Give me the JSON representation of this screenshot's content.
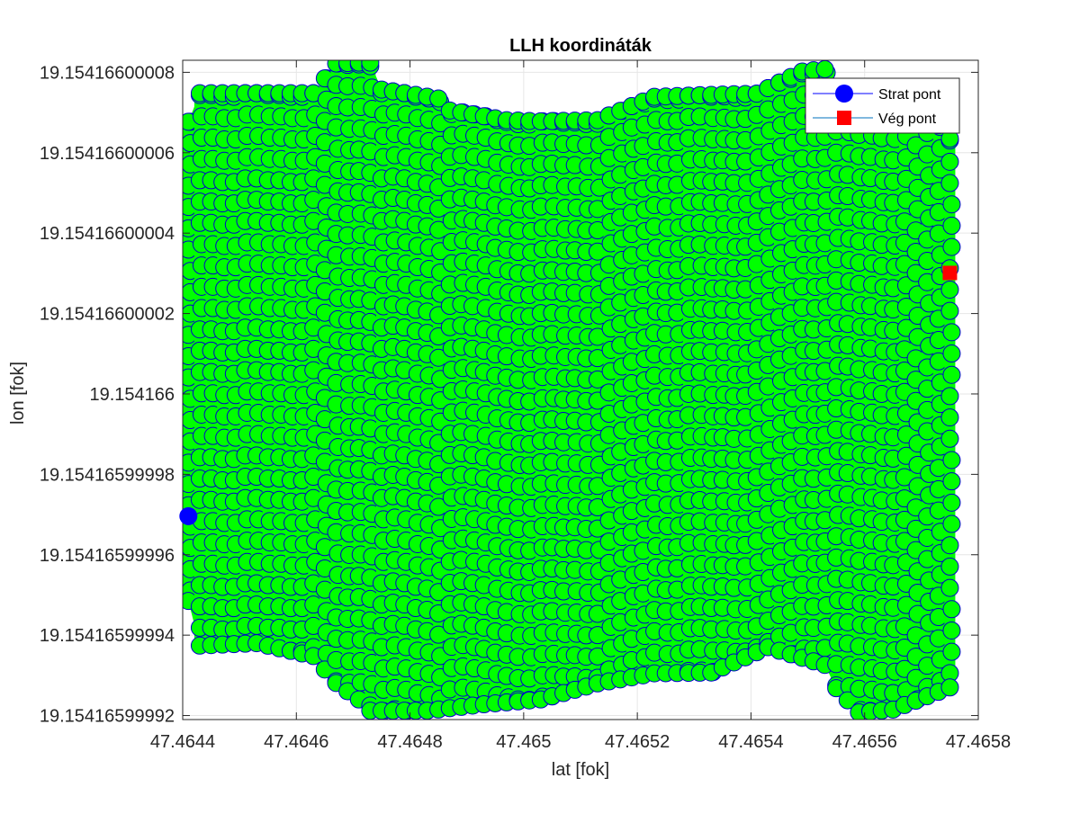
{
  "chart_data": {
    "type": "scatter",
    "title": "LLH koordináták",
    "xlabel": "lat [fok]",
    "ylabel": "lon [fok]",
    "xlim": [
      47.4644,
      47.4658
    ],
    "ylim": [
      19.154165999919,
      19.154166000083
    ],
    "xticks": [
      47.4644,
      47.4646,
      47.4648,
      47.465,
      47.4652,
      47.4654,
      47.4656,
      47.4658
    ],
    "xtick_labels": [
      "47.4644",
      "47.4646",
      "47.4648",
      "47.465",
      "47.4652",
      "47.4654",
      "47.4656",
      "47.4658"
    ],
    "yticks": [
      19.15416599992,
      19.15416599994,
      19.15416599996,
      19.15416599998,
      19.154166,
      19.15416600002,
      19.15416600004,
      19.15416600006,
      19.15416600008
    ],
    "ytick_labels": [
      "19.15416599992",
      "19.15416599994",
      "19.15416599996",
      "19.15416599998",
      "19.154166",
      "19.15416600002",
      "19.15416600004",
      "19.15416600006",
      "19.15416600008"
    ],
    "grid": true,
    "legend_position": "top-right",
    "trajectory": {
      "line_color": "#00ff00",
      "marker_fill": "#00ff00",
      "marker_edge": "#0000cc",
      "lat_start": 47.46441,
      "lat_end": 47.46575,
      "lat_step": 2e-05,
      "upper_envelope": [
        [
          47.46441,
          19.1541660000677
        ],
        [
          47.46443,
          19.1541660000748
        ],
        [
          47.46453,
          19.1541660000748
        ],
        [
          47.46463,
          19.1541660000748
        ],
        [
          47.46467,
          19.1541660000822
        ],
        [
          47.46471,
          19.1541660000824
        ],
        [
          47.46473,
          19.1541660000824
        ],
        [
          47.46475,
          19.1541660000757
        ],
        [
          47.46485,
          19.1541660000735
        ],
        [
          47.46487,
          19.1541660000705
        ],
        [
          47.46497,
          19.1541660000681
        ],
        [
          47.46503,
          19.1541660000678
        ],
        [
          47.46513,
          19.1541660000681
        ],
        [
          47.46523,
          19.1541660000739
        ],
        [
          47.46531,
          19.1541660000743
        ],
        [
          47.46541,
          19.1541660000747
        ],
        [
          47.46549,
          19.1541660000802
        ],
        [
          47.46553,
          19.1541660000808
        ],
        [
          47.46555,
          19.1541660000759
        ],
        [
          47.46567,
          19.1541660000747
        ],
        [
          47.46571,
          19.1541660000702
        ],
        [
          47.46575,
          19.1541660000635
        ]
      ],
      "lower_envelope": [
        [
          47.46441,
          19.1541659999485
        ],
        [
          47.46443,
          19.1541659999374
        ],
        [
          47.46453,
          19.154165999938
        ],
        [
          47.46463,
          19.1541659999348
        ],
        [
          47.46467,
          19.1541659999281
        ],
        [
          47.46471,
          19.154165999924
        ],
        [
          47.46473,
          19.1541659999212
        ],
        [
          47.46483,
          19.1541659999212
        ],
        [
          47.46493,
          19.1541659999228
        ],
        [
          47.46503,
          19.154165999924
        ],
        [
          47.46513,
          19.154165999928
        ],
        [
          47.46523,
          19.1541659999305
        ],
        [
          47.46533,
          19.1541659999307
        ],
        [
          47.46543,
          19.154165999937
        ],
        [
          47.46553,
          19.1541659999326
        ],
        [
          47.46555,
          19.1541659999268
        ],
        [
          47.46559,
          19.1541659999208
        ],
        [
          47.46565,
          19.1541659999215
        ],
        [
          47.46575,
          19.154165999927
        ]
      ],
      "tilt_lon_per_lat": -1.5e-08,
      "lon_spacing": 5.3e-12
    },
    "series": [
      {
        "name": "Strat pont",
        "marker": "circle",
        "color": "#0000ff",
        "x": 47.46441,
        "y": 19.1541659999696
      },
      {
        "name": "Vég pont",
        "marker": "square",
        "color": "#ff0000",
        "x": 47.46575,
        "y": 19.1541660000301
      }
    ]
  }
}
